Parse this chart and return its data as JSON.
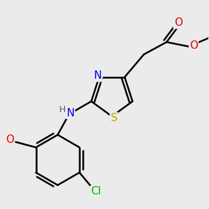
{
  "bg_color": "#ebebeb",
  "atom_colors": {
    "C": "#000000",
    "N": "#0000ee",
    "O": "#ee0000",
    "S": "#bbaa00",
    "Cl": "#00bb00",
    "H": "#555555"
  },
  "bond_color": "#000000",
  "bond_width": 1.8,
  "font_size_atom": 11,
  "font_size_small": 9
}
